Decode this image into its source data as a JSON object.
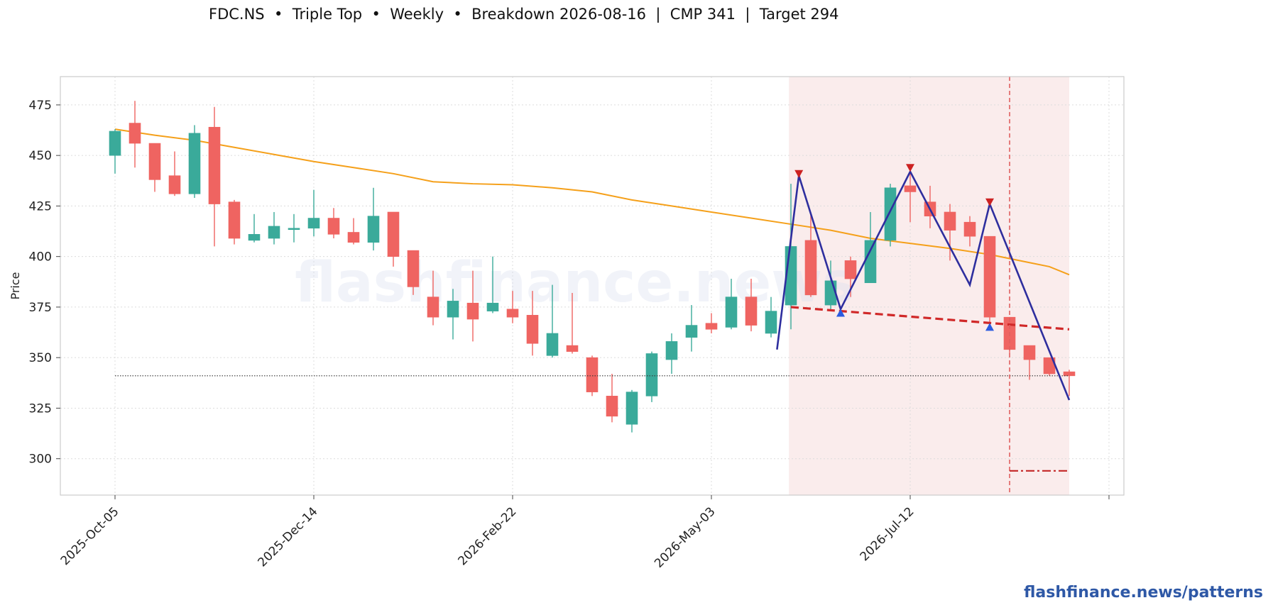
{
  "header": {
    "title": "FDC.NS  •  Triple Top  •  Weekly  •  Breakdown 2026-08-16  |  CMP 341  |  Target 294"
  },
  "footer": {
    "link_text": "flashfinance.news/patterns"
  },
  "watermark": "flashfinance.news",
  "colors": {
    "up": "#3aaa9a",
    "down": "#ef6461",
    "ma": "#f5a01a",
    "pattern_line": "#2e2e9e",
    "neckline": "#d02828",
    "zone": "#f9e9e9",
    "peak_marker": "#cc2222",
    "trough_marker": "#2b5be0"
  },
  "chart_data": {
    "type": "candlestick",
    "ylabel": "Price",
    "xlabel": "",
    "ylim": [
      282,
      489
    ],
    "yticks": [
      300,
      325,
      350,
      375,
      400,
      425,
      450,
      475
    ],
    "xtick_labels": [
      "2025-Oct-05",
      "2025-Dec-14",
      "2026-Feb-22",
      "2026-May-03",
      "2026-Jul-12",
      ""
    ],
    "xtick_index": [
      0,
      10,
      20,
      30,
      40,
      50
    ],
    "grid": true,
    "candles": [
      {
        "date": "2025-Oct-05",
        "o": 450,
        "h": 463,
        "l": 441,
        "c": 462
      },
      {
        "date": "2025-Oct-12",
        "o": 466,
        "h": 477,
        "l": 444,
        "c": 456
      },
      {
        "date": "2025-Oct-19",
        "o": 456,
        "h": 456,
        "l": 432,
        "c": 438
      },
      {
        "date": "2025-Oct-26",
        "o": 440,
        "h": 452,
        "l": 430,
        "c": 431
      },
      {
        "date": "2025-Nov-02",
        "o": 431,
        "h": 465,
        "l": 429,
        "c": 461
      },
      {
        "date": "2025-Nov-09",
        "o": 464,
        "h": 474,
        "l": 405,
        "c": 426
      },
      {
        "date": "2025-Nov-16",
        "o": 427,
        "h": 428,
        "l": 406,
        "c": 409
      },
      {
        "date": "2025-Nov-23",
        "o": 408,
        "h": 421,
        "l": 407,
        "c": 411
      },
      {
        "date": "2025-Nov-30",
        "o": 409,
        "h": 422,
        "l": 406,
        "c": 415
      },
      {
        "date": "2025-Dec-07",
        "o": 414,
        "h": 421,
        "l": 407,
        "c": 414
      },
      {
        "date": "2025-Dec-14",
        "o": 414,
        "h": 433,
        "l": 410,
        "c": 419
      },
      {
        "date": "2025-Dec-21",
        "o": 419,
        "h": 424,
        "l": 409,
        "c": 411
      },
      {
        "date": "2025-Dec-28",
        "o": 412,
        "h": 419,
        "l": 406,
        "c": 407
      },
      {
        "date": "2026-Jan-04",
        "o": 407,
        "h": 434,
        "l": 403,
        "c": 420
      },
      {
        "date": "2026-Jan-11",
        "o": 422,
        "h": 422,
        "l": 395,
        "c": 400
      },
      {
        "date": "2026-Jan-18",
        "o": 403,
        "h": 403,
        "l": 381,
        "c": 385
      },
      {
        "date": "2026-Jan-25",
        "o": 380,
        "h": 393,
        "l": 366,
        "c": 370
      },
      {
        "date": "2026-Feb-01",
        "o": 370,
        "h": 384,
        "l": 359,
        "c": 378
      },
      {
        "date": "2026-Feb-08",
        "o": 377,
        "h": 393,
        "l": 358,
        "c": 369
      },
      {
        "date": "2026-Feb-15",
        "o": 373,
        "h": 400,
        "l": 372,
        "c": 377
      },
      {
        "date": "2026-Feb-22",
        "o": 374,
        "h": 383,
        "l": 367,
        "c": 370
      },
      {
        "date": "2026-Mar-01",
        "o": 371,
        "h": 383,
        "l": 351,
        "c": 357
      },
      {
        "date": "2026-Mar-08",
        "o": 351,
        "h": 386,
        "l": 350,
        "c": 362
      },
      {
        "date": "2026-Mar-15",
        "o": 356,
        "h": 382,
        "l": 352,
        "c": 353
      },
      {
        "date": "2026-Mar-22",
        "o": 350,
        "h": 351,
        "l": 331,
        "c": 333
      },
      {
        "date": "2026-Mar-29",
        "o": 331,
        "h": 342,
        "l": 318,
        "c": 321
      },
      {
        "date": "2026-Apr-05",
        "o": 317,
        "h": 334,
        "l": 313,
        "c": 333
      },
      {
        "date": "2026-Apr-12",
        "o": 331,
        "h": 353,
        "l": 328,
        "c": 352
      },
      {
        "date": "2026-Apr-19",
        "o": 349,
        "h": 362,
        "l": 342,
        "c": 358
      },
      {
        "date": "2026-Apr-26",
        "o": 360,
        "h": 376,
        "l": 353,
        "c": 366
      },
      {
        "date": "2026-May-03",
        "o": 367,
        "h": 372,
        "l": 362,
        "c": 364
      },
      {
        "date": "2026-May-10",
        "o": 365,
        "h": 389,
        "l": 364,
        "c": 380
      },
      {
        "date": "2026-May-17",
        "o": 380,
        "h": 389,
        "l": 363,
        "c": 366
      },
      {
        "date": "2026-May-24",
        "o": 362,
        "h": 380,
        "l": 360,
        "c": 373
      },
      {
        "date": "2026-May-31",
        "o": 376,
        "h": 436,
        "l": 364,
        "c": 405
      },
      {
        "date": "2026-Jun-07",
        "o": 408,
        "h": 421,
        "l": 380,
        "c": 381
      },
      {
        "date": "2026-Jun-14",
        "o": 376,
        "h": 398,
        "l": 373,
        "c": 388
      },
      {
        "date": "2026-Jun-21",
        "o": 398,
        "h": 400,
        "l": 380,
        "c": 389
      },
      {
        "date": "2026-Jun-28",
        "o": 387,
        "h": 422,
        "l": 387,
        "c": 408
      },
      {
        "date": "2026-Jul-05",
        "o": 408,
        "h": 436,
        "l": 405,
        "c": 434
      },
      {
        "date": "2026-Jul-12",
        "o": 435,
        "h": 442,
        "l": 417,
        "c": 432
      },
      {
        "date": "2026-Jul-19",
        "o": 427,
        "h": 435,
        "l": 414,
        "c": 420
      },
      {
        "date": "2026-Jul-26",
        "o": 422,
        "h": 426,
        "l": 398,
        "c": 413
      },
      {
        "date": "2026-Aug-02",
        "o": 417,
        "h": 420,
        "l": 405,
        "c": 410
      },
      {
        "date": "2026-Aug-09",
        "o": 410,
        "h": 410,
        "l": 366,
        "c": 370
      },
      {
        "date": "2026-Aug-16",
        "o": 370,
        "h": 370,
        "l": 352,
        "c": 354
      },
      {
        "date": "2026-Aug-23",
        "o": 356,
        "h": 356,
        "l": 339,
        "c": 349
      },
      {
        "date": "2026-Aug-30",
        "o": 350,
        "h": 350,
        "l": 341,
        "c": 342
      },
      {
        "date": "2026-Sep-06",
        "o": 343,
        "h": 344,
        "l": 331,
        "c": 341
      }
    ],
    "moving_average": [
      [
        0,
        463
      ],
      [
        2,
        460
      ],
      [
        4,
        457.5
      ],
      [
        6,
        454
      ],
      [
        8,
        450.5
      ],
      [
        10,
        447
      ],
      [
        12,
        444
      ],
      [
        14,
        441
      ],
      [
        16,
        437
      ],
      [
        18,
        436
      ],
      [
        20,
        435.5
      ],
      [
        22,
        434
      ],
      [
        24,
        432
      ],
      [
        26,
        428
      ],
      [
        28,
        425
      ],
      [
        30,
        422
      ],
      [
        32,
        419
      ],
      [
        34,
        416
      ],
      [
        36,
        413
      ],
      [
        38,
        409
      ],
      [
        40,
        406.5
      ],
      [
        42,
        404
      ],
      [
        44,
        401
      ],
      [
        46,
        397
      ],
      [
        47,
        395
      ],
      [
        48,
        391
      ]
    ],
    "pattern_line": [
      [
        33.3,
        354
      ],
      [
        34.4,
        440
      ],
      [
        36.5,
        374
      ],
      [
        40,
        442
      ],
      [
        43,
        386
      ],
      [
        44,
        426
      ],
      [
        48,
        329
      ]
    ],
    "peak_markers": [
      [
        34.4,
        441
      ],
      [
        40,
        444
      ],
      [
        44,
        427
      ]
    ],
    "trough_markers": [
      [
        36.5,
        372
      ],
      [
        44,
        365
      ]
    ],
    "neckline": {
      "x0": 34,
      "y0": 375,
      "x1": 48,
      "y1": 364
    },
    "cmp_line": {
      "value": 341,
      "x0": 0,
      "x1": 48
    },
    "target_line": {
      "value": 294,
      "x0": 45,
      "x1": 48
    },
    "breakout_index": 45,
    "pattern_zone": {
      "x0": 33.9,
      "x1": 48
    }
  }
}
